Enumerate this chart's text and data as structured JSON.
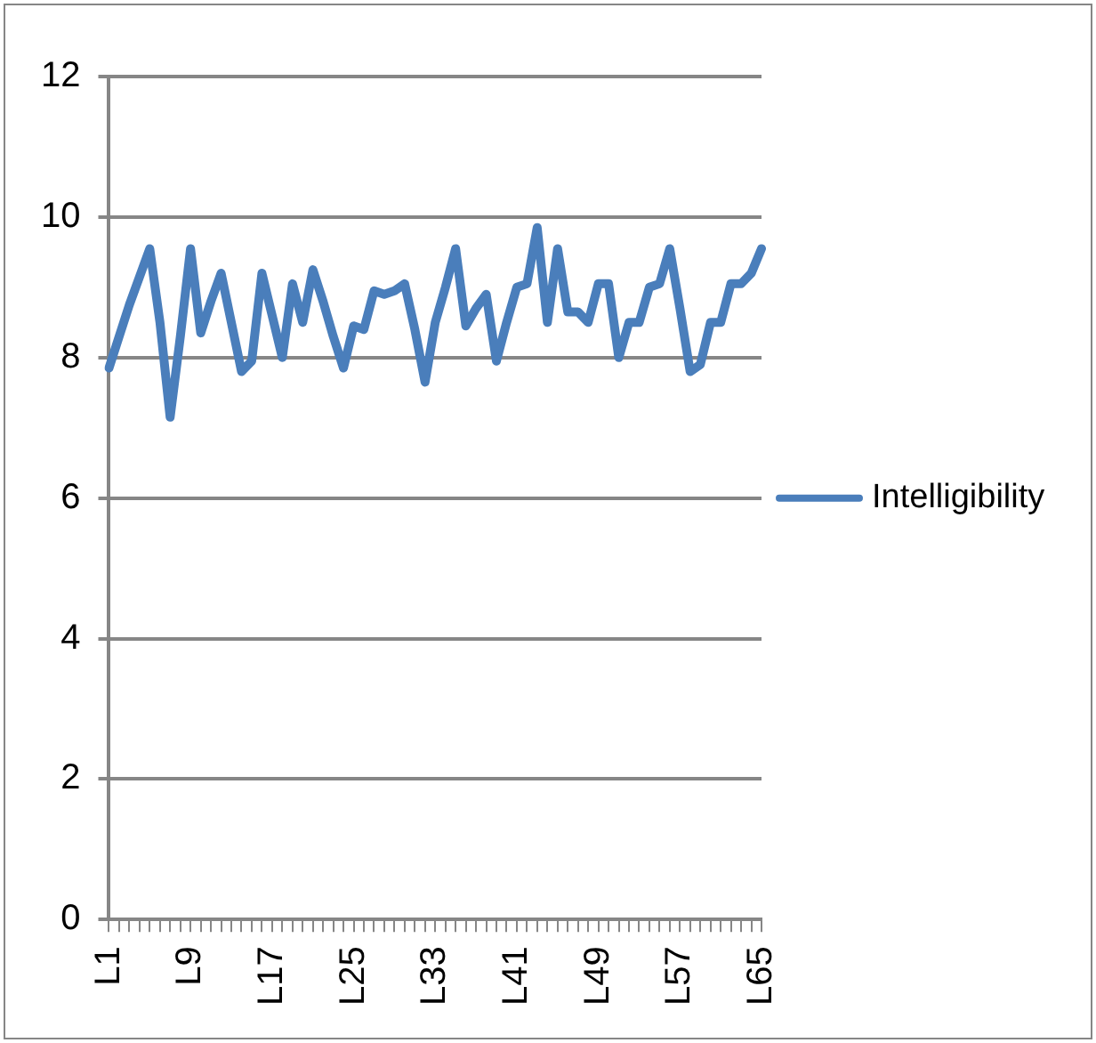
{
  "chart_data": {
    "type": "line",
    "categories": [
      "L1",
      null,
      null,
      null,
      null,
      null,
      null,
      null,
      "L9",
      null,
      null,
      null,
      null,
      null,
      null,
      null,
      "L17",
      null,
      null,
      null,
      null,
      null,
      null,
      null,
      "L25",
      null,
      null,
      null,
      null,
      null,
      null,
      null,
      "L33",
      null,
      null,
      null,
      null,
      null,
      null,
      null,
      "L41",
      null,
      null,
      null,
      null,
      null,
      null,
      null,
      "L49",
      null,
      null,
      null,
      null,
      null,
      null,
      null,
      "L57",
      null,
      null,
      null,
      null,
      null,
      null,
      null,
      "L65"
    ],
    "series": [
      {
        "name": "Intelligibility",
        "color": "#4a7ebb",
        "values": [
          7.85,
          8.3,
          8.75,
          9.15,
          9.55,
          8.5,
          7.15,
          8.3,
          9.55,
          8.35,
          8.8,
          9.2,
          8.5,
          7.8,
          7.95,
          9.2,
          8.6,
          8.0,
          9.05,
          8.5,
          9.25,
          8.8,
          8.3,
          7.85,
          8.45,
          8.4,
          8.95,
          8.9,
          8.95,
          9.05,
          8.4,
          7.65,
          8.5,
          9.0,
          9.55,
          8.45,
          8.7,
          8.9,
          7.95,
          8.5,
          9.0,
          9.05,
          9.85,
          8.5,
          9.55,
          8.65,
          8.65,
          8.5,
          9.05,
          9.05,
          8.0,
          8.5,
          8.5,
          9.0,
          9.05,
          9.55,
          8.7,
          7.8,
          7.9,
          8.5,
          8.5,
          9.05,
          9.05,
          9.2,
          9.55
        ]
      }
    ],
    "ylim": [
      0,
      12
    ],
    "yticks": [
      0,
      2,
      4,
      6,
      8,
      10,
      12
    ],
    "grid": "y",
    "legend": "right",
    "marker": "none"
  }
}
